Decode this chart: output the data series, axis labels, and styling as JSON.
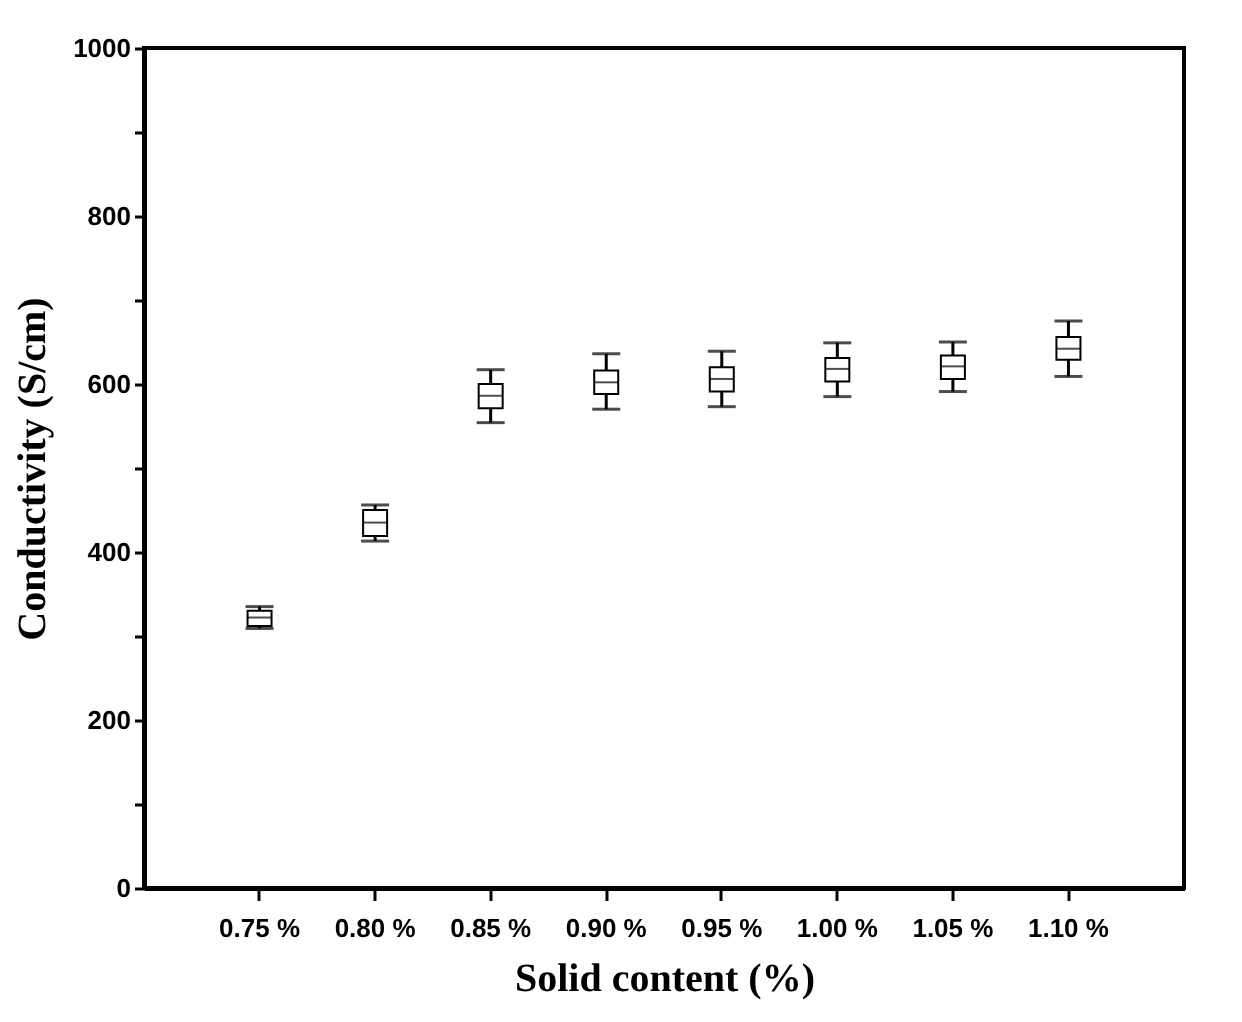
{
  "chart_data": {
    "type": "box",
    "xlabel": "Solid content (%)",
    "ylabel": "Conductivity (S/cm)",
    "categories": [
      "0.75 %",
      "0.80 %",
      "0.85 %",
      "0.90 %",
      "0.95 %",
      "1.00 %",
      "1.05 %",
      "1.10 %"
    ],
    "boxes": [
      {
        "low": 309,
        "q1": 312,
        "median": 322,
        "q3": 330,
        "high": 335
      },
      {
        "low": 413,
        "q1": 419,
        "median": 435,
        "q3": 450,
        "high": 456
      },
      {
        "low": 554,
        "q1": 571,
        "median": 586,
        "q3": 600,
        "high": 617
      },
      {
        "low": 570,
        "q1": 588,
        "median": 602,
        "q3": 616,
        "high": 636
      },
      {
        "low": 573,
        "q1": 591,
        "median": 606,
        "q3": 620,
        "high": 639
      },
      {
        "low": 585,
        "q1": 603,
        "median": 618,
        "q3": 631,
        "high": 649
      },
      {
        "low": 591,
        "q1": 606,
        "median": 621,
        "q3": 634,
        "high": 650
      },
      {
        "low": 609,
        "q1": 629,
        "median": 642,
        "q3": 656,
        "high": 675
      }
    ],
    "color": "#000000",
    "ylim": [
      0,
      1000
    ],
    "yticks": [
      0,
      {
        "value": 100,
        "label": null
      },
      200,
      {
        "value": 300,
        "label": null
      },
      400,
      {
        "value": 500,
        "label": null
      },
      600,
      {
        "value": 700,
        "label": null
      },
      800,
      {
        "value": 900,
        "label": null
      },
      1000
    ],
    "grid": false
  }
}
